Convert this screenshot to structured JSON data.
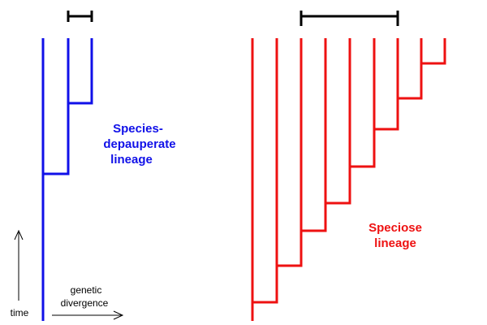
{
  "colors": {
    "depauperate": "#1010e8",
    "speciose": "#ee1111",
    "scale": "#000000",
    "background": "#ffffff"
  },
  "labels": {
    "depauperate_line1": "Species-",
    "depauperate_line2": "depauperate",
    "depauperate_line3": "lineage",
    "speciose_line1": "Speciose",
    "speciose_line2": "lineage",
    "time": "time",
    "divergence_line1": "genetic",
    "divergence_line2": "divergence"
  }
}
